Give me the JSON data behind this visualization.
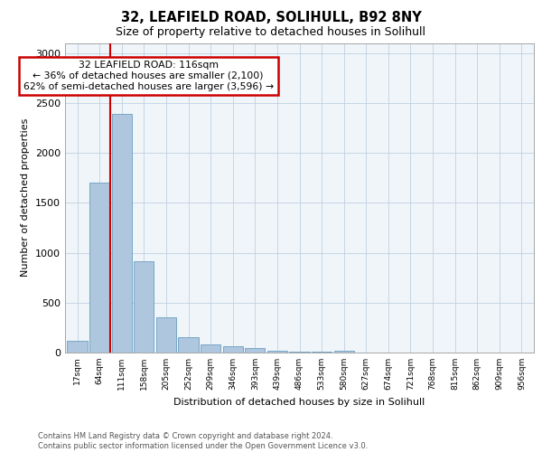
{
  "title1": "32, LEAFIELD ROAD, SOLIHULL, B92 8NY",
  "title2": "Size of property relative to detached houses in Solihull",
  "xlabel": "Distribution of detached houses by size in Solihull",
  "ylabel": "Number of detached properties",
  "bin_labels": [
    "17sqm",
    "64sqm",
    "111sqm",
    "158sqm",
    "205sqm",
    "252sqm",
    "299sqm",
    "346sqm",
    "393sqm",
    "439sqm",
    "486sqm",
    "533sqm",
    "580sqm",
    "627sqm",
    "674sqm",
    "721sqm",
    "768sqm",
    "815sqm",
    "862sqm",
    "909sqm",
    "956sqm"
  ],
  "bar_values": [
    120,
    1700,
    2390,
    910,
    355,
    155,
    85,
    60,
    45,
    20,
    10,
    5,
    20,
    0,
    0,
    0,
    0,
    0,
    0,
    0,
    0
  ],
  "bar_color": "#aec6de",
  "bar_edge_color": "#6a9ec0",
  "annotation_title": "32 LEAFIELD ROAD: 116sqm",
  "annotation_line1": "← 36% of detached houses are smaller (2,100)",
  "annotation_line2": "62% of semi-detached houses are larger (3,596) →",
  "vline_color": "#cc0000",
  "annotation_box_color": "#cc0000",
  "ylim": [
    0,
    3100
  ],
  "yticks": [
    0,
    500,
    1000,
    1500,
    2000,
    2500,
    3000
  ],
  "footer1": "Contains HM Land Registry data © Crown copyright and database right 2024.",
  "footer2": "Contains public sector information licensed under the Open Government Licence v3.0.",
  "plot_bg_color": "#f0f5fa"
}
